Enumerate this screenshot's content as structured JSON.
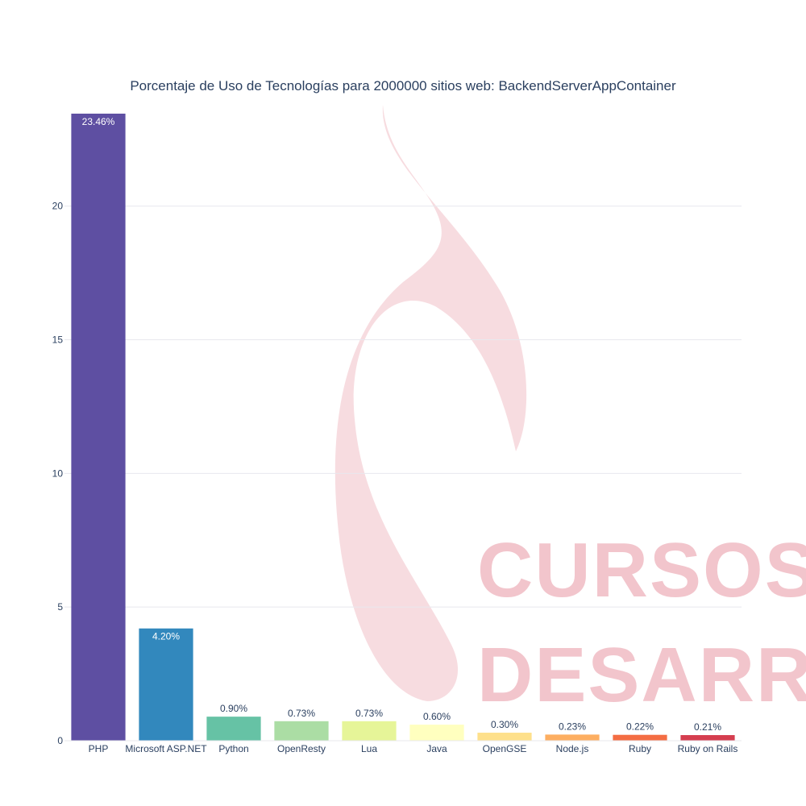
{
  "chart_data": {
    "type": "bar",
    "title": "Porcentaje de Uso de Tecnologías para 2000000 sitios web: BackendServerAppContainer",
    "xlabel": "",
    "ylabel": "",
    "categories": [
      "PHP",
      "Microsoft ASP.NET",
      "Python",
      "OpenResty",
      "Lua",
      "Java",
      "OpenGSE",
      "Node.js",
      "Ruby",
      "Ruby on Rails"
    ],
    "values": [
      23.46,
      4.2,
      0.9,
      0.73,
      0.73,
      0.6,
      0.3,
      0.23,
      0.22,
      0.21
    ],
    "labels": [
      "23.46%",
      "4.20%",
      "0.90%",
      "0.73%",
      "0.73%",
      "0.60%",
      "0.30%",
      "0.23%",
      "0.22%",
      "0.21%"
    ],
    "colors": [
      "#5e4fa2",
      "#3288bd",
      "#66c2a5",
      "#abdda4",
      "#e6f598",
      "#ffffbf",
      "#fee08b",
      "#fdae61",
      "#f46d43",
      "#d53e4f"
    ],
    "ylim": [
      0,
      23.46
    ],
    "yticks": [
      0,
      5,
      10,
      15,
      20
    ],
    "grid": true,
    "legend": "none"
  },
  "watermark": {
    "line1": "CURSOS DE",
    "line2": "DESARROLLO"
  }
}
